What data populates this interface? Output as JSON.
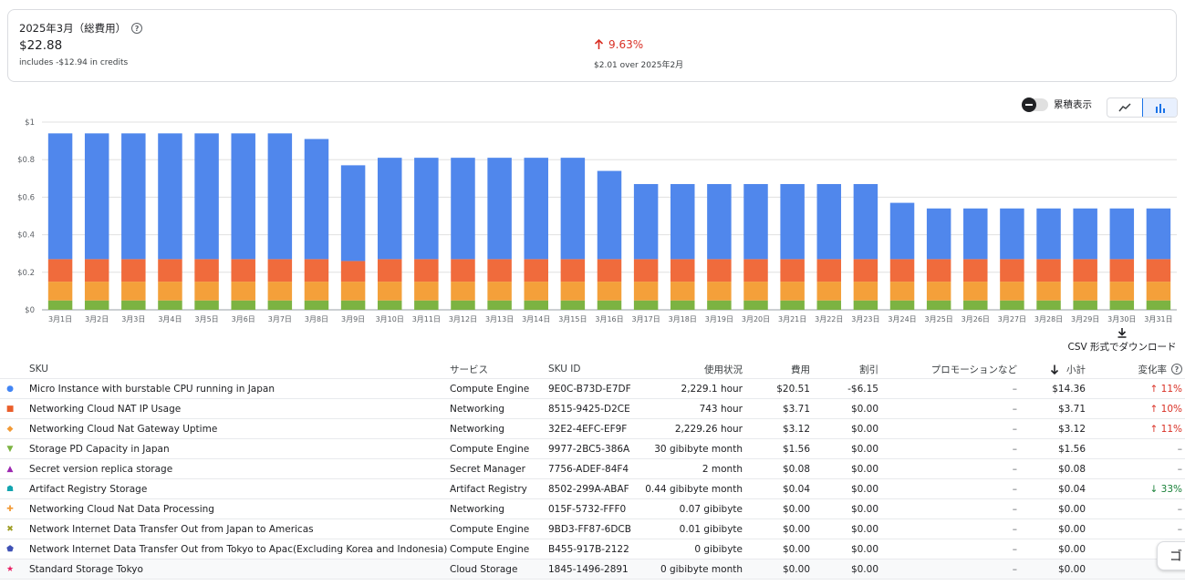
{
  "summary": {
    "period_label": "2025年3月（総費用）",
    "total": "$22.88",
    "credits_note": "includes -$12.94 in credits",
    "change_pct": "9.63%",
    "change_note": "$2.01 over 2025年2月"
  },
  "controls": {
    "cumulative_label": "累積表示",
    "csv_label": "CSV 形式でダウンロード"
  },
  "chart_data": {
    "type": "bar",
    "stacked": true,
    "categories": [
      "3月1日",
      "3月2日",
      "3月3日",
      "3月4日",
      "3月5日",
      "3月6日",
      "3月7日",
      "3月8日",
      "3月9日",
      "3月10日",
      "3月11日",
      "3月12日",
      "3月13日",
      "3月14日",
      "3月15日",
      "3月16日",
      "3月17日",
      "3月18日",
      "3月19日",
      "3月20日",
      "3月21日",
      "3月22日",
      "3月23日",
      "3月24日",
      "3月25日",
      "3月26日",
      "3月27日",
      "3月28日",
      "3月29日",
      "3月30日",
      "3月31日"
    ],
    "ylim": [
      0,
      1
    ],
    "yticks": [
      "$0",
      "$0.2",
      "$0.4",
      "$0.6",
      "$0.8",
      "$1"
    ],
    "grid": true,
    "series": [
      {
        "color": "#7cb342",
        "values": [
          0.05,
          0.05,
          0.05,
          0.05,
          0.05,
          0.05,
          0.05,
          0.05,
          0.05,
          0.05,
          0.05,
          0.05,
          0.05,
          0.05,
          0.05,
          0.05,
          0.05,
          0.05,
          0.05,
          0.05,
          0.05,
          0.05,
          0.05,
          0.05,
          0.05,
          0.05,
          0.05,
          0.05,
          0.05,
          0.05,
          0.05
        ]
      },
      {
        "color": "#f4a03a",
        "values": [
          0.1,
          0.1,
          0.1,
          0.1,
          0.1,
          0.1,
          0.1,
          0.1,
          0.1,
          0.1,
          0.1,
          0.1,
          0.1,
          0.1,
          0.1,
          0.1,
          0.1,
          0.1,
          0.1,
          0.1,
          0.1,
          0.1,
          0.1,
          0.1,
          0.1,
          0.1,
          0.1,
          0.1,
          0.1,
          0.1,
          0.1
        ]
      },
      {
        "color": "#f06b3c",
        "values": [
          0.12,
          0.12,
          0.12,
          0.12,
          0.12,
          0.12,
          0.12,
          0.12,
          0.11,
          0.12,
          0.12,
          0.12,
          0.12,
          0.12,
          0.12,
          0.12,
          0.12,
          0.12,
          0.12,
          0.12,
          0.12,
          0.12,
          0.12,
          0.12,
          0.12,
          0.12,
          0.12,
          0.12,
          0.12,
          0.12,
          0.12
        ]
      },
      {
        "color": "#5087ec",
        "values": [
          0.67,
          0.67,
          0.67,
          0.67,
          0.67,
          0.67,
          0.67,
          0.64,
          0.51,
          0.54,
          0.54,
          0.54,
          0.54,
          0.54,
          0.54,
          0.47,
          0.4,
          0.4,
          0.4,
          0.4,
          0.4,
          0.4,
          0.4,
          0.3,
          0.27,
          0.27,
          0.27,
          0.27,
          0.27,
          0.27,
          0.27
        ]
      }
    ]
  },
  "table": {
    "headers": {
      "sku": "SKU",
      "service": "サービス",
      "sku_id": "SKU ID",
      "usage": "使用状況",
      "cost": "費用",
      "discount": "割引",
      "promo": "プロモーションなど",
      "subtotal": "小計",
      "change": "変化率"
    },
    "rows": [
      {
        "icon": "●",
        "color": "#4285f4",
        "sku": "Micro Instance with burstable CPU running in Japan",
        "service": "Compute Engine",
        "sku_id": "9E0C-B73D-E7DF",
        "usage": "2,229.1 hour",
        "cost": "$20.51",
        "discount": "-$6.15",
        "promo": "–",
        "subtotal": "$14.36",
        "change": "↑ 11%",
        "dir": "up"
      },
      {
        "icon": "■",
        "color": "#ea5e2a",
        "sku": "Networking Cloud NAT IP Usage",
        "service": "Networking",
        "sku_id": "8515-9425-D2CE",
        "usage": "743 hour",
        "cost": "$3.71",
        "discount": "$0.00",
        "promo": "–",
        "subtotal": "$3.71",
        "change": "↑ 10%",
        "dir": "up"
      },
      {
        "icon": "◆",
        "color": "#f29a36",
        "sku": "Networking Cloud Nat Gateway Uptime",
        "service": "Networking",
        "sku_id": "32E2-4EFC-EF9F",
        "usage": "2,229.26 hour",
        "cost": "$3.12",
        "discount": "$0.00",
        "promo": "–",
        "subtotal": "$3.12",
        "change": "↑ 11%",
        "dir": "up"
      },
      {
        "icon": "▼",
        "color": "#7cb342",
        "sku": "Storage PD Capacity in Japan",
        "service": "Compute Engine",
        "sku_id": "9977-2BC5-386A",
        "usage": "30 gibibyte month",
        "cost": "$1.56",
        "discount": "$0.00",
        "promo": "–",
        "subtotal": "$1.56",
        "change": "–",
        "dir": "none"
      },
      {
        "icon": "▲",
        "color": "#9c27b0",
        "sku": "Secret version replica storage",
        "service": "Secret Manager",
        "sku_id": "7756-ADEF-84F4",
        "usage": "2 month",
        "cost": "$0.08",
        "discount": "$0.00",
        "promo": "–",
        "subtotal": "$0.08",
        "change": "–",
        "dir": "none"
      },
      {
        "icon": "☗",
        "color": "#12a4af",
        "sku": "Artifact Registry Storage",
        "service": "Artifact Registry",
        "sku_id": "8502-299A-ABAF",
        "usage": "0.44 gibibyte month",
        "cost": "$0.04",
        "discount": "$0.00",
        "promo": "–",
        "subtotal": "$0.04",
        "change": "↓ 33%",
        "dir": "down"
      },
      {
        "icon": "✚",
        "color": "#f29a36",
        "sku": "Networking Cloud Nat Data Processing",
        "service": "Networking",
        "sku_id": "015F-5732-FFF0",
        "usage": "0.07 gibibyte",
        "cost": "$0.00",
        "discount": "$0.00",
        "promo": "–",
        "subtotal": "$0.00",
        "change": "–",
        "dir": "none"
      },
      {
        "icon": "✖",
        "color": "#9e9d24",
        "sku": "Network Internet Data Transfer Out from Japan to Americas",
        "service": "Compute Engine",
        "sku_id": "9BD3-FF87-6DCB",
        "usage": "0.01 gibibyte",
        "cost": "$0.00",
        "discount": "$0.00",
        "promo": "–",
        "subtotal": "$0.00",
        "change": "–",
        "dir": "none"
      },
      {
        "icon": "⬟",
        "color": "#3f51b5",
        "sku": "Network Internet Data Transfer Out from Tokyo to Apac(Excluding Korea and Indonesia)",
        "service": "Compute Engine",
        "sku_id": "B455-917B-2122",
        "usage": "0 gibibyte",
        "cost": "$0.00",
        "discount": "$0.00",
        "promo": "–",
        "subtotal": "$0.00",
        "change": "–",
        "dir": "none"
      },
      {
        "icon": "★",
        "color": "#e91e63",
        "sku": "Standard Storage Tokyo",
        "service": "Cloud Storage",
        "sku_id": "1845-1496-2891",
        "usage": "0 gibibyte month",
        "cost": "$0.00",
        "discount": "$0.00",
        "promo": "–",
        "subtotal": "$0.00",
        "change": "–",
        "dir": "none"
      }
    ]
  },
  "side_fab_label": "ゴ"
}
